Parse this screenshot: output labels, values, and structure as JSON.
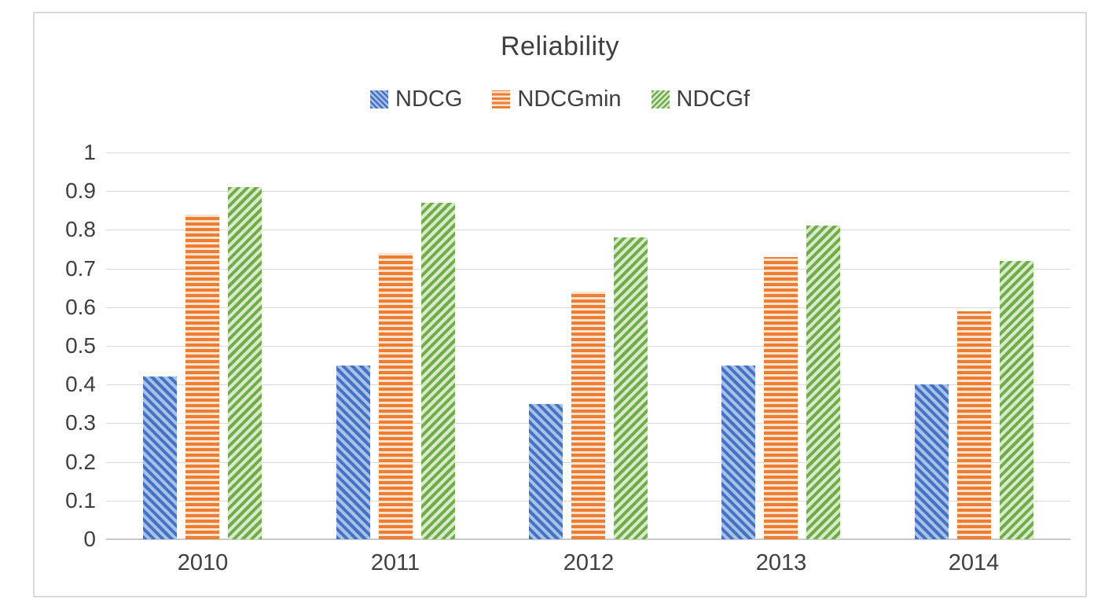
{
  "chart_data": {
    "type": "bar",
    "title": "Reliability",
    "xlabel": "",
    "ylabel": "",
    "categories": [
      "2010",
      "2011",
      "2012",
      "2013",
      "2014"
    ],
    "series": [
      {
        "name": "NDCG",
        "pattern": "diagonal-down",
        "color": "#4472C4",
        "bg": "#A9C1E5",
        "values": [
          0.42,
          0.45,
          0.35,
          0.45,
          0.4
        ]
      },
      {
        "name": "NDCGmin",
        "pattern": "horizontal",
        "color": "#ED7D31",
        "bg": "#FBE3D1",
        "values": [
          0.84,
          0.74,
          0.64,
          0.73,
          0.59
        ]
      },
      {
        "name": "NDCGf",
        "pattern": "diagonal-up",
        "color": "#70AD47",
        "bg": "#D8E9CE",
        "values": [
          0.91,
          0.87,
          0.78,
          0.81,
          0.72
        ]
      }
    ],
    "ylim": [
      0,
      1
    ],
    "ytick_step": 0.1,
    "yticks": [
      "1",
      "0.9",
      "0.8",
      "0.7",
      "0.6",
      "0.5",
      "0.4",
      "0.3",
      "0.2",
      "0.1",
      "0"
    ],
    "grid": true,
    "legend_position": "top-center"
  },
  "style": {
    "text_color": "#404040",
    "title_color": "#3F3F3F",
    "gridline_color": "#D9D9D9",
    "axis_line_color": "#C9C9C9",
    "frame_border_color": "#D9D9D9",
    "background": "#FFFFFF"
  }
}
